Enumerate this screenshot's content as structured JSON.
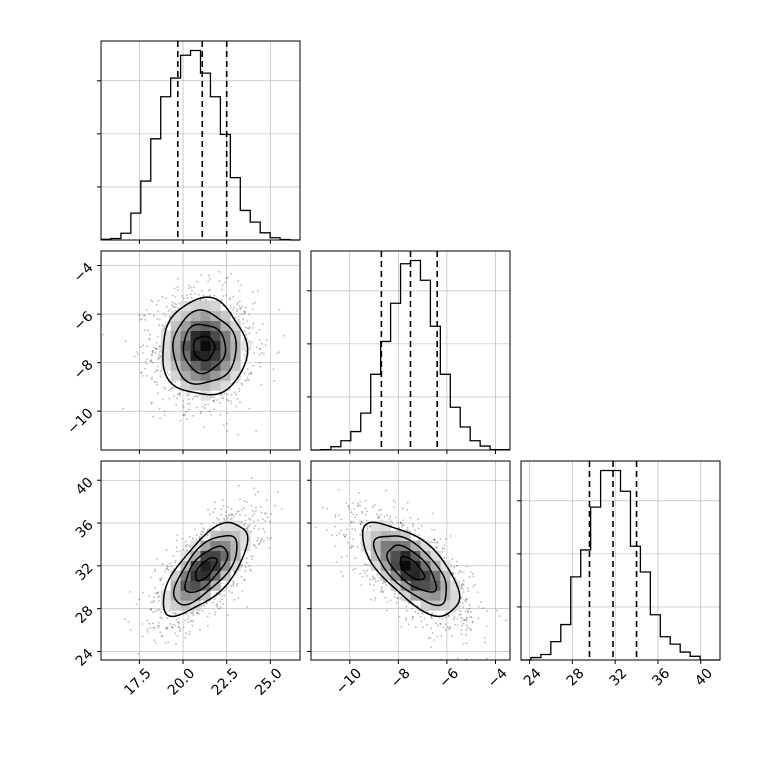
{
  "chart_data": {
    "type": "corner",
    "title": "",
    "parameters": [
      {
        "key": "p0",
        "label": "",
        "range": [
          15.3,
          26.7
        ],
        "ticks": [
          "17.5",
          "20.0",
          "22.5",
          "25.0"
        ],
        "tick_values": [
          17.5,
          20.0,
          22.5,
          25.0
        ],
        "quantiles": [
          19.7,
          21.1,
          22.5
        ],
        "hist_edges": [
          15.3,
          15.87,
          16.44,
          17.01,
          17.58,
          18.15,
          18.72,
          19.29,
          19.86,
          20.43,
          21.0,
          21.57,
          22.14,
          22.71,
          23.28,
          23.85,
          24.42,
          24.99,
          25.56,
          26.13,
          26.7
        ],
        "hist_counts": [
          5,
          10,
          45,
          180,
          395,
          678,
          960,
          1085,
          1238,
          1270,
          1118,
          960,
          708,
          418,
          198,
          120,
          48,
          15,
          3,
          0
        ]
      },
      {
        "key": "p1",
        "label": "",
        "range": [
          -11.6,
          -3.4
        ],
        "ticks": [
          "-10",
          "-8",
          "-6",
          "-4"
        ],
        "tick_values": [
          -10,
          -8,
          -6,
          -4
        ],
        "quantiles": [
          -8.7,
          -7.5,
          -6.4
        ],
        "hist_edges": [
          -11.6,
          -11.19,
          -10.78,
          -10.37,
          -9.96,
          -9.55,
          -9.14,
          -8.73,
          -8.32,
          -7.91,
          -7.5,
          -7.09,
          -6.68,
          -6.27,
          -5.86,
          -5.45,
          -5.04,
          -4.63,
          -4.22,
          -3.81,
          -3.4
        ],
        "hist_counts": [
          0,
          5,
          50,
          140,
          280,
          560,
          1150,
          1650,
          2230,
          2830,
          2880,
          2580,
          1880,
          1150,
          650,
          350,
          140,
          60,
          5,
          5
        ]
      },
      {
        "key": "p2",
        "label": "",
        "range": [
          23.2,
          41.8
        ],
        "ticks": [
          "24",
          "28",
          "32",
          "36",
          "40"
        ],
        "tick_values": [
          24,
          28,
          32,
          36,
          40
        ],
        "quantiles": [
          29.6,
          31.8,
          34.0
        ],
        "hist_edges": [
          23.2,
          24.13,
          25.06,
          25.99,
          26.92,
          27.85,
          28.78,
          29.71,
          30.64,
          31.57,
          32.5,
          33.43,
          34.36,
          35.29,
          36.22,
          37.15,
          38.08,
          39.01,
          39.94,
          40.87,
          41.8
        ],
        "hist_counts": [
          0,
          20,
          45,
          150,
          290,
          680,
          900,
          1250,
          1550,
          1550,
          1380,
          930,
          720,
          370,
          190,
          130,
          65,
          30,
          0,
          0
        ]
      }
    ],
    "pairs": [
      {
        "x": "p0",
        "y": "p1",
        "center": [
          21.2,
          -7.4
        ],
        "sd": [
          1.15,
          0.95
        ],
        "rho": 0.0
      },
      {
        "x": "p0",
        "y": "p2",
        "center": [
          21.3,
          31.7
        ],
        "sd": [
          1.15,
          2.05
        ],
        "rho": 0.68
      },
      {
        "x": "p1",
        "y": "p2",
        "center": [
          -7.45,
          31.75
        ],
        "sd": [
          0.95,
          2.05
        ],
        "rho": -0.66
      }
    ],
    "contour_levels_sigma": [
      0.5,
      1.0,
      1.5,
      2.0
    ],
    "grid": true,
    "legend": "none"
  }
}
